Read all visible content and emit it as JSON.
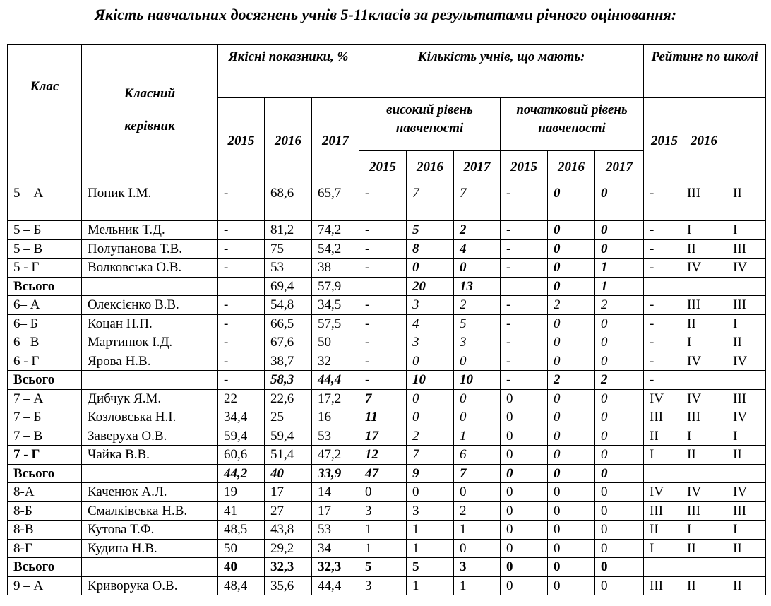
{
  "title": "Якість навчальних  досягнень учнів 5-11класів за результатами річного оцінювання:",
  "headers": {
    "class": "Клас",
    "teacher_line1": "Класний",
    "teacher_line2": "керівник",
    "quality": "Якісні показники, %",
    "count": "Кількість учнів, що мають:",
    "high": "високий рівень навченості",
    "initial": "початковий рівень навченості",
    "rating": "Рейтинг по школі",
    "years": [
      "2015",
      "2016",
      "2017"
    ],
    "rating_years": [
      "2015",
      "2016",
      ""
    ]
  },
  "rows": [
    {
      "type": "class",
      "cells": [
        "5 – А",
        "Попик І.М.",
        "-",
        "68,6",
        "65,7",
        "-",
        "7",
        "7",
        "-",
        "0",
        "0",
        "-",
        "ІІІ",
        "ІІ"
      ],
      "styles": [
        "",
        "",
        "",
        "",
        "",
        "",
        "i",
        "i",
        "",
        "bi",
        "bi",
        "",
        "",
        ""
      ],
      "tall": true
    },
    {
      "type": "class",
      "cells": [
        " 5 – Б",
        "Мельник Т.Д.",
        "-",
        "81,2",
        "74,2",
        "-",
        "5",
        "2",
        "-",
        "0",
        "0",
        "-",
        "І",
        "І"
      ],
      "styles": [
        "",
        "",
        "",
        "",
        "",
        "",
        "bi",
        "bi",
        "",
        "bi",
        "bi",
        "",
        "",
        ""
      ]
    },
    {
      "type": "class",
      "cells": [
        " 5 – В",
        "Полупанова Т.В.",
        "-",
        "75",
        "54,2",
        "-",
        "8",
        "4",
        "-",
        "0",
        "0",
        "-",
        "ІІ",
        "ІІІ"
      ],
      "styles": [
        "",
        "",
        "",
        "",
        "",
        "",
        "bi",
        "bi",
        "",
        "bi",
        "bi",
        "",
        "",
        ""
      ]
    },
    {
      "type": "class",
      "cells": [
        " 5 -  Г",
        "Волковська О.В.",
        "-",
        "53",
        "38",
        "-",
        "0",
        "0",
        "-",
        "0",
        "1",
        "-",
        "IV",
        "IV"
      ],
      "styles": [
        "",
        "",
        "",
        "",
        "",
        "",
        "bi",
        "bi",
        "",
        "bi",
        "bi",
        "",
        "",
        ""
      ]
    },
    {
      "type": "total",
      "cells": [
        " Всього",
        "",
        "",
        "69,4",
        "57,9",
        "",
        "20",
        "13",
        "",
        "0",
        "1",
        "",
        "",
        ""
      ],
      "styles": [
        "b",
        "",
        "",
        "",
        "",
        "",
        "bi",
        "bi",
        "",
        "bi",
        "bi",
        "",
        "",
        ""
      ]
    },
    {
      "type": "class",
      "cells": [
        " 6– А",
        "Олексієнко В.В.",
        "-",
        "54,8",
        "34,5",
        "-",
        "3",
        "2",
        "-",
        "2",
        "2",
        "-",
        "ІІІ",
        "ІІІ"
      ],
      "styles": [
        "",
        "",
        "",
        "",
        "",
        "",
        "i",
        "i",
        "",
        "i",
        "i",
        "",
        "",
        ""
      ]
    },
    {
      "type": "class",
      "cells": [
        " 6– Б",
        "Коцан Н.П.",
        "-",
        "66,5",
        "57,5",
        "-",
        "4",
        "5",
        "-",
        "0",
        "0",
        "-",
        "ІІ",
        "І"
      ],
      "styles": [
        "",
        "",
        "",
        "",
        "",
        "",
        "i",
        "i",
        "",
        "i",
        "i",
        "",
        "",
        ""
      ]
    },
    {
      "type": "class",
      "cells": [
        " 6– В",
        "Мартинюк І.Д.",
        "-",
        "67,6",
        "50",
        "-",
        "3",
        "3",
        "-",
        "0",
        "0",
        "-",
        "І",
        "ІІ"
      ],
      "styles": [
        "",
        "",
        "",
        "",
        "",
        "",
        "i",
        "i",
        "",
        "i",
        "i",
        "",
        "",
        ""
      ]
    },
    {
      "type": "class",
      "cells": [
        " 6 - Г",
        "Ярова Н.В.",
        "-",
        "38,7",
        "32",
        "-",
        "0",
        "0",
        "-",
        "0",
        "0",
        "-",
        "IV",
        "IV"
      ],
      "styles": [
        "",
        "",
        "",
        "",
        "",
        "",
        "i",
        "i",
        "",
        "i",
        "i",
        "",
        "",
        ""
      ]
    },
    {
      "type": "total",
      "cells": [
        " Всього",
        "",
        "-",
        "58,3",
        "44,4",
        "-",
        "10",
        "10",
        "-",
        "2",
        "2",
        "-",
        "",
        ""
      ],
      "styles": [
        "b",
        "",
        "b",
        "bi",
        "bi",
        "b",
        "bi",
        "bi",
        "b",
        "bi",
        "bi",
        "b",
        "",
        ""
      ]
    },
    {
      "type": "class",
      "cells": [
        " 7 – А",
        "Дибчук Я.М.",
        "22",
        "22,6",
        "17,2",
        "7",
        "0",
        "0",
        "0",
        "0",
        "0",
        "IV",
        "IV",
        "ІІІ"
      ],
      "styles": [
        "",
        "",
        "",
        "",
        "",
        "bi",
        "i",
        "i",
        "",
        "i",
        "i",
        "",
        "",
        ""
      ]
    },
    {
      "type": "class",
      "cells": [
        " 7 – Б",
        "Козловська Н.І.",
        "34,4",
        "25",
        "16",
        "11",
        "0",
        "0",
        "0",
        "0",
        "0",
        "ІІІ",
        "ІІІ",
        "IV"
      ],
      "styles": [
        "",
        "",
        "",
        "",
        "",
        "bi",
        "i",
        "i",
        "",
        "i",
        "i",
        "",
        "",
        ""
      ]
    },
    {
      "type": "class",
      "cells": [
        " 7 – В",
        "Заверуха О.В.",
        "59,4",
        "59,4",
        "53",
        "17",
        "2",
        "1",
        "0",
        "0",
        "0",
        "ІІ",
        "І",
        "І"
      ],
      "styles": [
        "",
        "",
        "",
        "",
        "",
        "bi",
        "i",
        "i",
        "",
        "i",
        "i",
        "",
        "",
        ""
      ]
    },
    {
      "type": "class",
      "cells": [
        " 7 -  Г",
        "Чайка В.В.",
        "60,6",
        "51,4",
        "47,2",
        "12",
        "7",
        "6",
        "0",
        "0",
        "0",
        "І",
        "ІІ",
        "ІІ"
      ],
      "styles": [
        "b",
        "",
        "",
        "",
        "",
        "bi",
        "i",
        "i",
        "",
        "i",
        "i",
        "",
        "",
        ""
      ]
    },
    {
      "type": "total",
      "cells": [
        " Всього",
        "",
        "44,2",
        "40",
        "33,9",
        "47",
        "9",
        "7",
        "0",
        "0",
        "0",
        "",
        "",
        ""
      ],
      "styles": [
        "b",
        "",
        "bi",
        "bi",
        "bi",
        "bi",
        "bi",
        "bi",
        "bi",
        "bi",
        "bi",
        "",
        "",
        ""
      ]
    },
    {
      "type": "class",
      "cells": [
        "8-А",
        "Каченюк А.Л.",
        "19",
        "17",
        "14",
        "0",
        "0",
        "0",
        "0",
        "0",
        "0",
        "IV",
        "IV",
        "IV"
      ],
      "styles": [
        "",
        "",
        "",
        "",
        "",
        "",
        "",
        "",
        "",
        "",
        "",
        "",
        "",
        ""
      ]
    },
    {
      "type": "class",
      "cells": [
        "8-Б",
        "Смалківська Н.В.",
        "41",
        "27",
        "17",
        "3",
        "3",
        "2",
        "0",
        "0",
        "0",
        "ІІІ",
        "ІІІ",
        "ІІІ"
      ],
      "styles": [
        "",
        "",
        "",
        "",
        "",
        "",
        "",
        "",
        "",
        "",
        "",
        "",
        "",
        ""
      ]
    },
    {
      "type": "class",
      "cells": [
        "8-В",
        "Кутова Т.Ф.",
        "48,5",
        "43,8",
        "53",
        "1",
        "1",
        "1",
        "0",
        "0",
        "0",
        "ІІ",
        "І",
        "І"
      ],
      "styles": [
        "",
        "",
        "",
        "",
        "",
        "",
        "",
        "",
        "",
        "",
        "",
        "",
        "",
        ""
      ]
    },
    {
      "type": "class",
      "cells": [
        "8-Г",
        "Кудина Н.В.",
        "50",
        "29,2",
        "34",
        "1",
        "1",
        "0",
        "0",
        "0",
        "0",
        "І",
        "ІІ",
        "ІІ"
      ],
      "styles": [
        "",
        "",
        "",
        "",
        "",
        "",
        "",
        "",
        "",
        "",
        "",
        "",
        "",
        ""
      ]
    },
    {
      "type": "total",
      "cells": [
        " Всього",
        "",
        "40",
        "32,3",
        "32,3",
        "5",
        "5",
        "3",
        "0",
        "0",
        "0",
        "",
        "",
        ""
      ],
      "styles": [
        "b",
        "",
        "b",
        "b",
        "b",
        "b",
        "b",
        "b",
        "b",
        "b",
        "b",
        "",
        "",
        ""
      ]
    },
    {
      "type": "class",
      "cells": [
        "9 – А",
        "Криворука О.В.",
        "48,4",
        "35,6",
        "44,4",
        "3",
        "1",
        "1",
        "0",
        "0",
        "0",
        "ІІІ",
        "ІІ",
        "ІІ"
      ],
      "styles": [
        "",
        "",
        "",
        "",
        "",
        "",
        "",
        "",
        "",
        "",
        "",
        "",
        "",
        ""
      ]
    }
  ]
}
